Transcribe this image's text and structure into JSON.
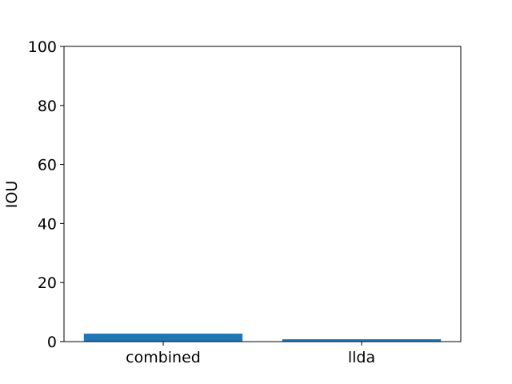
{
  "chart_data": {
    "type": "bar",
    "categories": [
      "combined",
      "llda"
    ],
    "values": [
      2.7,
      0.8
    ],
    "title": "",
    "xlabel": "",
    "ylabel": "IOU",
    "ylim": [
      0,
      100
    ],
    "yticks": [
      "0",
      "20",
      "40",
      "60",
      "80",
      "100"
    ],
    "grid": false,
    "bar_color": "#1f77b4"
  }
}
